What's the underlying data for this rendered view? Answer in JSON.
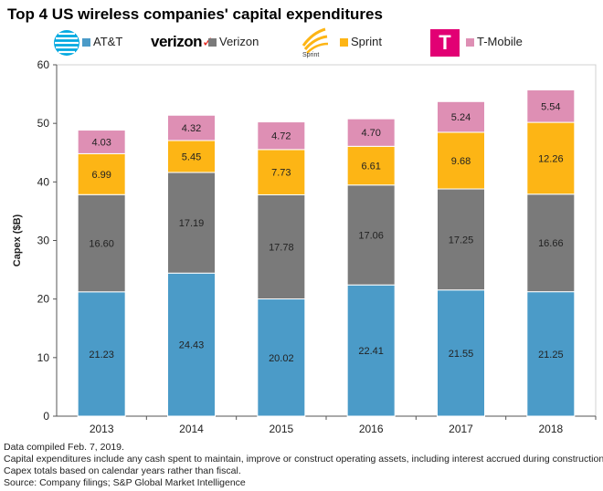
{
  "title": "Top 4 US wireless companies' capital expenditures",
  "chart_data": {
    "type": "bar",
    "stacked": true,
    "categories": [
      "2013",
      "2014",
      "2015",
      "2016",
      "2017",
      "2018"
    ],
    "series": [
      {
        "name": "AT&T",
        "color": "#4b9bc8",
        "values": [
          21.23,
          24.43,
          20.02,
          22.41,
          21.55,
          21.25
        ]
      },
      {
        "name": "Verizon",
        "color": "#7a7a7a",
        "values": [
          16.6,
          17.19,
          17.78,
          17.06,
          17.25,
          16.66
        ]
      },
      {
        "name": "Sprint",
        "color": "#fdb515",
        "values": [
          6.99,
          5.45,
          7.73,
          6.61,
          9.68,
          12.26
        ]
      },
      {
        "name": "T-Mobile",
        "color": "#de8fb4",
        "values": [
          4.03,
          4.32,
          4.72,
          4.7,
          5.24,
          5.54
        ]
      }
    ],
    "value_labels": [
      [
        "21.23",
        "24.43",
        "20.02",
        "22.41",
        "21.55",
        "21.25"
      ],
      [
        "16.60",
        "17.19",
        "17.78",
        "17.06",
        "17.25",
        "16.66"
      ],
      [
        "6.99",
        "5.45",
        "7.73",
        "6.61",
        "9.68",
        "12.26"
      ],
      [
        "4.03",
        "4.32",
        "4.72",
        "4.70",
        "5.24",
        "5.54"
      ]
    ],
    "ylabel": "Capex ($B)",
    "xlabel": "",
    "ylim": [
      0,
      60
    ],
    "yticks": [
      "0",
      "10",
      "20",
      "30",
      "40",
      "50",
      "60"
    ],
    "legend": "top"
  },
  "logos": {
    "verizon": "verizon",
    "sprint": "Sprint",
    "tmobile": "T"
  },
  "footnotes": [
    "Data compiled Feb. 7, 2019.",
    "Capital expenditures include any cash spent to maintain, improve or construct operating assets, including interest accrued during construction.",
    "Capex totals based on calendar years rather than fiscal.",
    "Source: Company filings; S&P Global Market Intelligence"
  ]
}
